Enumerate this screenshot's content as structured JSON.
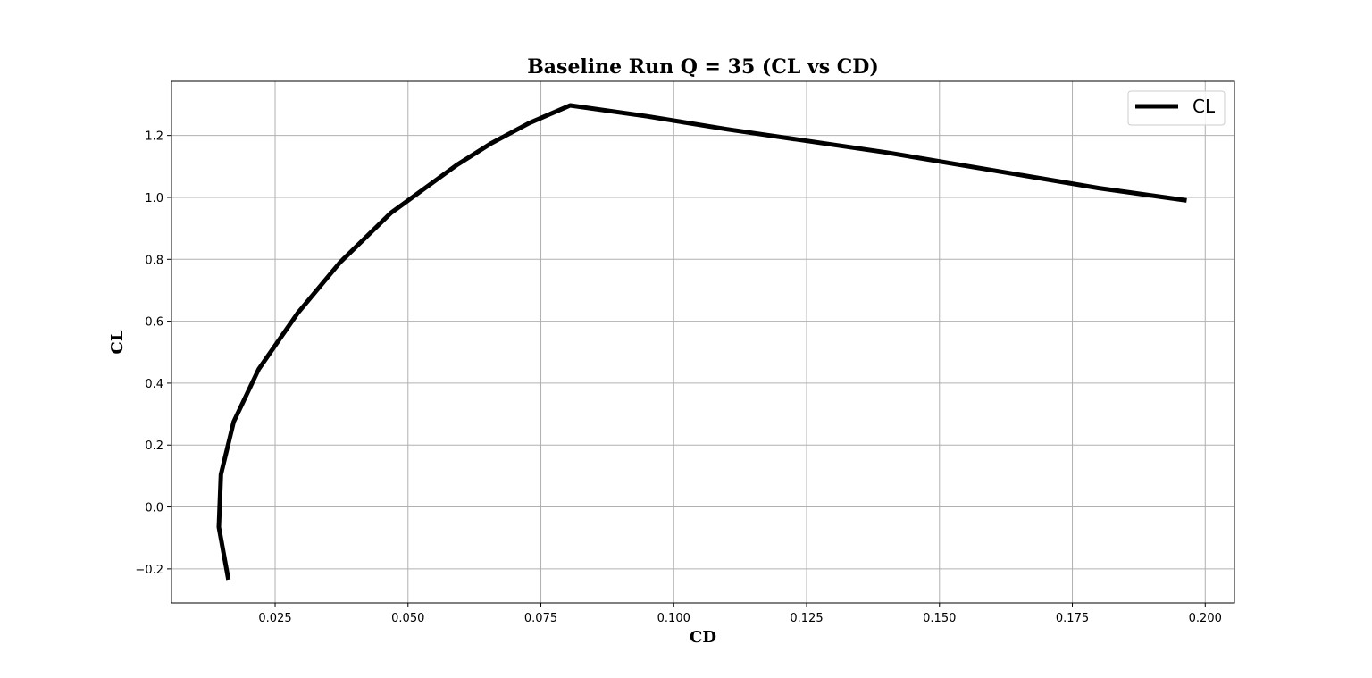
{
  "chart_data": {
    "type": "line",
    "title": "Baseline Run Q = 35 (CL vs CD)",
    "xlabel": "CD",
    "ylabel": "CL",
    "xlim": [
      0.0055,
      0.2055
    ],
    "ylim": [
      -0.31,
      1.375
    ],
    "grid": true,
    "legend_position": "top-right",
    "x_ticks": [
      0.025,
      0.05,
      0.075,
      0.1,
      0.125,
      0.15,
      0.175,
      0.2
    ],
    "x_tick_labels": [
      "0.025",
      "0.050",
      "0.075",
      "0.100",
      "0.125",
      "0.150",
      "0.175",
      "0.200"
    ],
    "y_ticks": [
      -0.2,
      0.0,
      0.2,
      0.4,
      0.6,
      0.8,
      1.0,
      1.2
    ],
    "y_tick_labels": [
      "−0.2",
      "0.0",
      "0.2",
      "0.4",
      "0.6",
      "0.8",
      "1.0",
      "1.2"
    ],
    "series": [
      {
        "name": "CL",
        "color": "#000000",
        "points": [
          [
            0.0162,
            -0.235
          ],
          [
            0.0144,
            -0.065
          ],
          [
            0.0148,
            0.105
          ],
          [
            0.0172,
            0.275
          ],
          [
            0.0219,
            0.445
          ],
          [
            0.0292,
            0.625
          ],
          [
            0.0372,
            0.79
          ],
          [
            0.0468,
            0.95
          ],
          [
            0.0532,
            1.03
          ],
          [
            0.0592,
            1.105
          ],
          [
            0.0657,
            1.175
          ],
          [
            0.0728,
            1.24
          ],
          [
            0.0805,
            1.297
          ],
          [
            0.095,
            1.262
          ],
          [
            0.11,
            1.22
          ],
          [
            0.14,
            1.145
          ],
          [
            0.18,
            1.03
          ],
          [
            0.1965,
            0.99
          ]
        ]
      }
    ]
  }
}
